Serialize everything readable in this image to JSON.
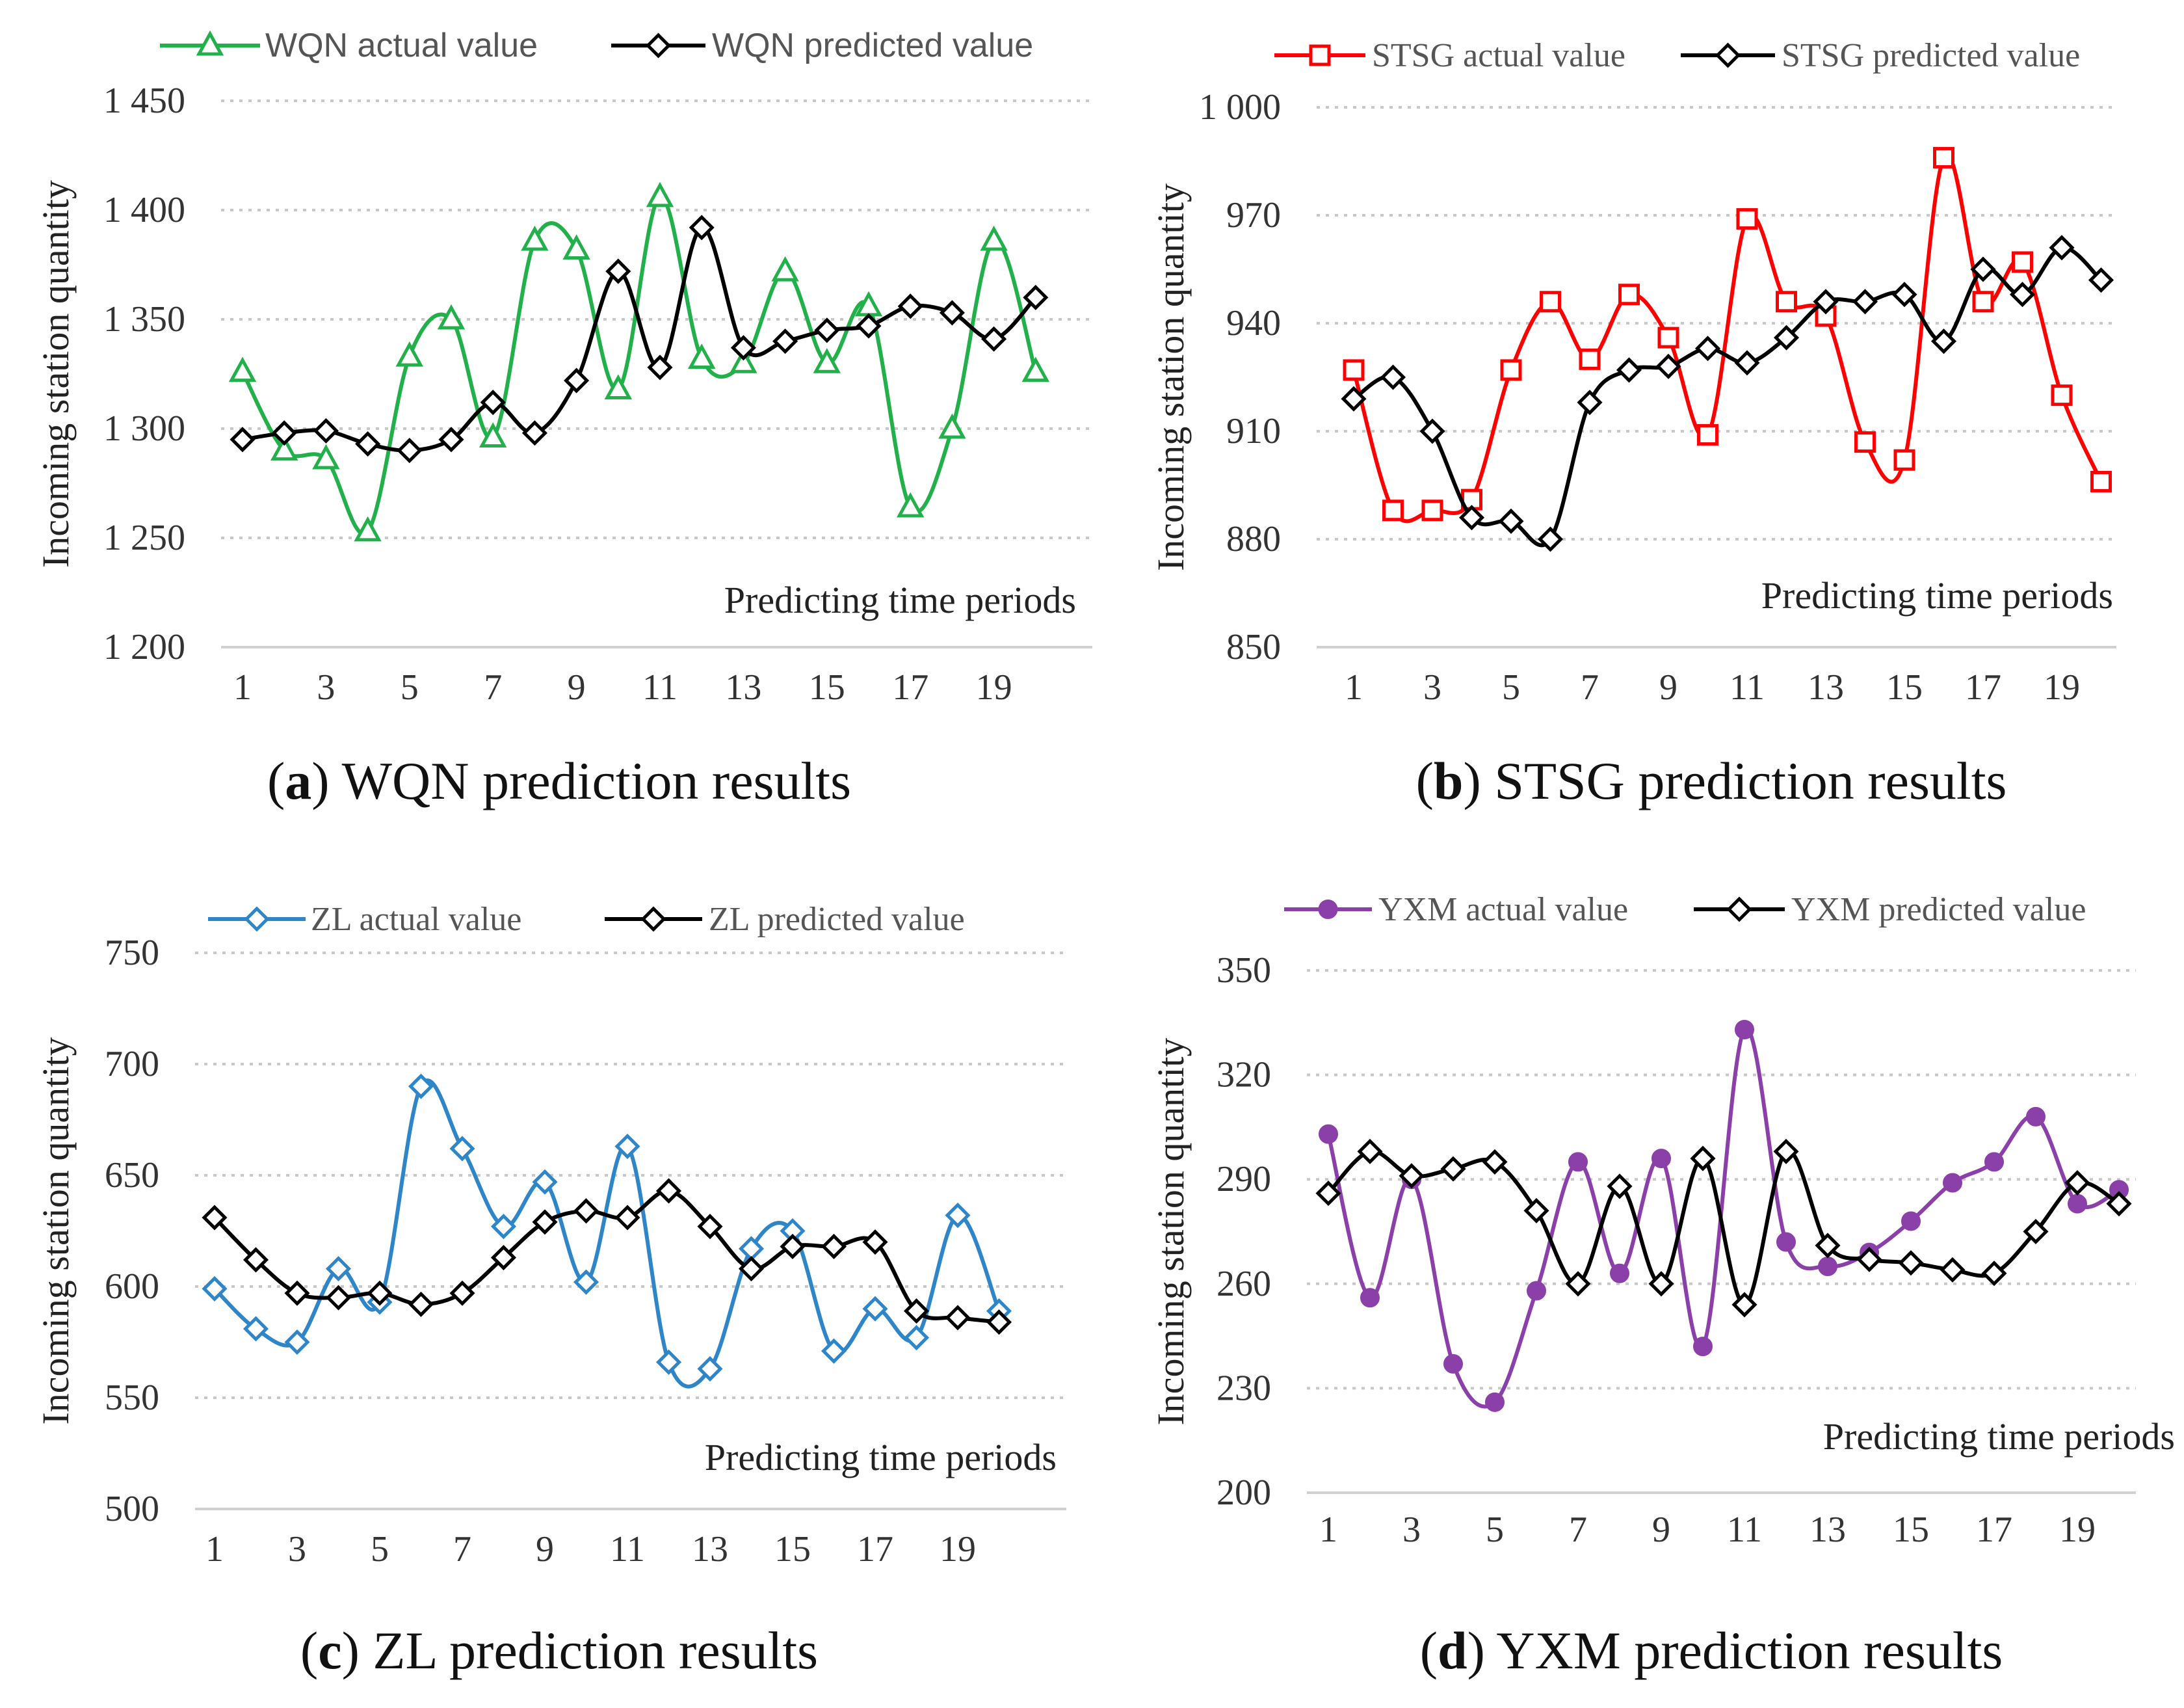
{
  "chart_data": [
    {
      "type": "line",
      "panel_letter": "a",
      "caption": "WQN prediction results",
      "ylabel": "Incoming station quantity",
      "xlabel": "Predicting time periods",
      "x": [
        1,
        2,
        3,
        4,
        5,
        6,
        7,
        8,
        9,
        10,
        11,
        12,
        13,
        14,
        15,
        16,
        17,
        18,
        19,
        20
      ],
      "xticks": [
        "1",
        "3",
        "5",
        "7",
        "9",
        "11",
        "13",
        "15",
        "17",
        "19"
      ],
      "ylim": [
        1200,
        1450
      ],
      "yticks": [
        "1 200",
        "1 250",
        "1 300",
        "1 350",
        "1 400",
        "1 450"
      ],
      "series": [
        {
          "name": "WQN actual value",
          "color": "#22b04b",
          "marker": "triangle",
          "values": [
            1326,
            1290,
            1286,
            1253,
            1333,
            1350,
            1296,
            1386,
            1382,
            1318,
            1406,
            1332,
            1330,
            1372,
            1330,
            1356,
            1264,
            1300,
            1386,
            1326
          ]
        },
        {
          "name": "WQN predicted value",
          "color": "#000000",
          "marker": "diamond",
          "values": [
            1295,
            1298,
            1299,
            1293,
            1290,
            1295,
            1312,
            1298,
            1322,
            1372,
            1328,
            1392,
            1337,
            1340,
            1345,
            1347,
            1356,
            1353,
            1341,
            1360
          ]
        }
      ]
    },
    {
      "type": "line",
      "panel_letter": "b",
      "caption": "STSG prediction results",
      "ylabel": "Incoming station quantity",
      "xlabel": "Predicting time periods",
      "x": [
        1,
        2,
        3,
        4,
        5,
        6,
        7,
        8,
        9,
        10,
        11,
        12,
        13,
        14,
        15,
        16,
        17,
        18,
        19,
        20
      ],
      "xticks": [
        "1",
        "3",
        "5",
        "7",
        "9",
        "11",
        "13",
        "15",
        "17",
        "19"
      ],
      "ylim": [
        850,
        1000
      ],
      "yticks": [
        "850",
        "880",
        "910",
        "940",
        "970",
        "1 000"
      ],
      "series": [
        {
          "name": "STSG actual value",
          "color": "#ff0000",
          "marker": "square",
          "values": [
            927,
            888,
            888,
            891,
            927,
            946,
            930,
            948,
            936,
            909,
            969,
            946,
            942,
            907,
            902,
            986,
            946,
            957,
            920,
            896
          ]
        },
        {
          "name": "STSG predicted value",
          "color": "#000000",
          "marker": "diamond",
          "values": [
            919,
            925,
            910,
            886,
            885,
            880,
            918,
            927,
            928,
            933,
            929,
            936,
            946,
            946,
            948,
            935,
            955,
            948,
            961,
            952
          ]
        }
      ]
    },
    {
      "type": "line",
      "panel_letter": "c",
      "caption": "ZL prediction results",
      "ylabel": "Incoming station quantity",
      "xlabel": "Predicting time periods",
      "x": [
        1,
        2,
        3,
        4,
        5,
        6,
        7,
        8,
        9,
        10,
        11,
        12,
        13,
        14,
        15,
        16,
        17,
        18,
        19,
        20
      ],
      "xticks": [
        "1",
        "3",
        "5",
        "7",
        "9",
        "11",
        "13",
        "15",
        "17",
        "19"
      ],
      "ylim": [
        500,
        750
      ],
      "yticks": [
        "500",
        "550",
        "600",
        "650",
        "700",
        "750"
      ],
      "series": [
        {
          "name": "ZL actual value",
          "color": "#2e86c8",
          "marker": "diamond",
          "values": [
            599,
            581,
            575,
            608,
            593,
            690,
            662,
            627,
            647,
            602,
            663,
            566,
            563,
            617,
            625,
            571,
            590,
            577,
            632,
            589
          ]
        },
        {
          "name": "ZL predicted value",
          "color": "#000000",
          "marker": "diamond",
          "values": [
            631,
            612,
            597,
            595,
            597,
            592,
            597,
            613,
            629,
            634,
            631,
            643,
            627,
            608,
            618,
            618,
            620,
            589,
            586,
            584
          ]
        }
      ]
    },
    {
      "type": "line",
      "panel_letter": "d",
      "caption": "YXM prediction results",
      "ylabel": "Incoming station quantity",
      "xlabel": "Predicting time periods",
      "x": [
        1,
        2,
        3,
        4,
        5,
        6,
        7,
        8,
        9,
        10,
        11,
        12,
        13,
        14,
        15,
        16,
        17,
        18,
        19,
        20
      ],
      "xticks": [
        "1",
        "3",
        "5",
        "7",
        "9",
        "11",
        "13",
        "15",
        "17",
        "19"
      ],
      "ylim": [
        200,
        350
      ],
      "yticks": [
        "200",
        "230",
        "260",
        "290",
        "320",
        "350"
      ],
      "series": [
        {
          "name": "YXM actual value",
          "color": "#8b3fa8",
          "marker": "circle",
          "values": [
            303,
            256,
            290,
            237,
            226,
            258,
            295,
            263,
            296,
            242,
            333,
            272,
            265,
            269,
            278,
            289,
            295,
            308,
            283,
            287
          ]
        },
        {
          "name": "YXM predicted value",
          "color": "#000000",
          "marker": "diamond",
          "values": [
            286,
            298,
            291,
            293,
            295,
            281,
            260,
            288,
            260,
            296,
            254,
            298,
            271,
            267,
            266,
            264,
            263,
            275,
            289,
            283
          ]
        }
      ]
    }
  ]
}
